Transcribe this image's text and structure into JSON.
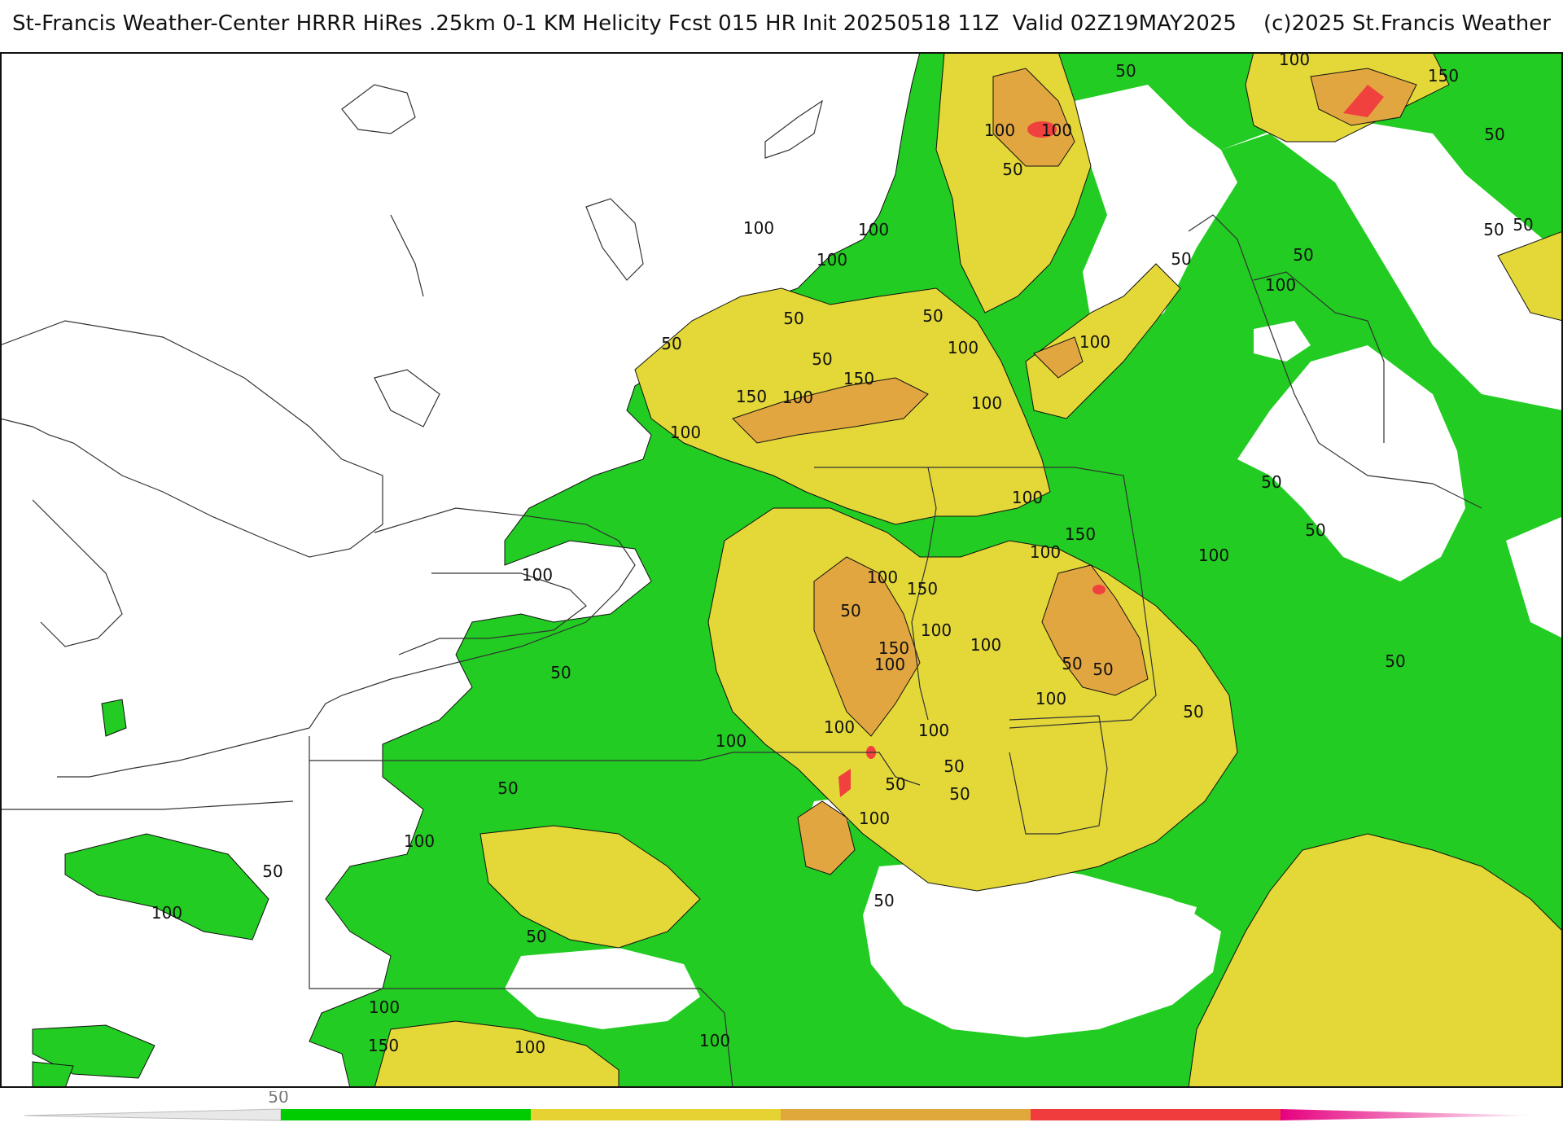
{
  "header": {
    "title": "St-Francis Weather-Center HRRR HiRes .25km 0-1 KM Helicity Fcst 015 HR Init 20250518 11Z  Valid 02Z19MAY2025    (c)2025 St.Francis Weather"
  },
  "legend": {
    "tick_label": "50",
    "colors": [
      "#ffffff",
      "#00cc00",
      "#e6d333",
      "#e0a83a",
      "#f03c3c",
      "#e6007e"
    ]
  },
  "colors": {
    "none": "#ffffff",
    "level_50": "#22cc22",
    "level_100": "#e3d838",
    "level_150": "#e2a641",
    "level_200": "#f0413e",
    "boundary": "#333333",
    "contour": "#111111"
  },
  "map": {
    "contour_labels": [
      "50",
      "100",
      "150",
      "100",
      "100",
      "50",
      "50",
      "100",
      "100",
      "100",
      "50",
      "50",
      "50",
      "100",
      "50",
      "150",
      "100",
      "150",
      "100",
      "100",
      "50",
      "100",
      "50",
      "50",
      "50",
      "100",
      "50",
      "100",
      "100",
      "150",
      "50",
      "150",
      "100",
      "150",
      "100",
      "100",
      "50",
      "100",
      "50",
      "100",
      "50",
      "50",
      "100",
      "50",
      "100",
      "50",
      "100",
      "50",
      "50",
      "100",
      "100",
      "100",
      "50",
      "100",
      "50",
      "50",
      "50",
      "100",
      "100",
      "150",
      "100",
      "100",
      "50"
    ]
  }
}
